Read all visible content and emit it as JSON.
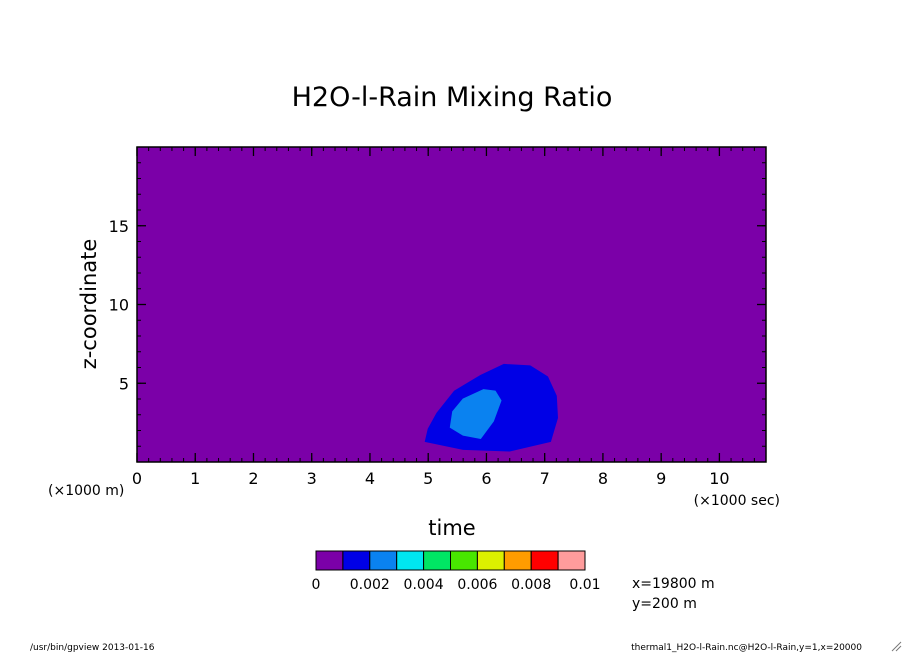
{
  "chart_data": {
    "type": "heatmap",
    "title": "H2O-l-Rain Mixing Ratio",
    "xlabel": "time",
    "ylabel": "z-coordinate",
    "x_units": "(×1000 sec)",
    "y_units": "(×1000 m)",
    "xlim": [
      0,
      10.8
    ],
    "ylim": [
      0,
      20
    ],
    "x_ticks": [
      0,
      1,
      2,
      3,
      4,
      5,
      6,
      7,
      8,
      9,
      10
    ],
    "y_ticks": [
      5,
      10,
      15
    ],
    "colorbar": {
      "levels": [
        0,
        0.001,
        0.002,
        0.003,
        0.004,
        0.005,
        0.006,
        0.007,
        0.008,
        0.009,
        0.01
      ],
      "tick_labels": [
        "0",
        "0.002",
        "0.004",
        "0.006",
        "0.008",
        "0.01"
      ],
      "colors": [
        "#7b00a8",
        "#0000e6",
        "#0a82f0",
        "#00e6f0",
        "#00e664",
        "#48e600",
        "#dcf000",
        "#ff9c00",
        "#ff0000",
        "#ff9c9c"
      ]
    },
    "background_level_color": "#7b00a8",
    "regions": [
      {
        "range": [
          0.001,
          0.002
        ],
        "color": "#0000e6",
        "outline": [
          [
            4.95,
            1.3
          ],
          [
            5.0,
            2.1
          ],
          [
            5.15,
            3.1
          ],
          [
            5.45,
            4.5
          ],
          [
            5.9,
            5.5
          ],
          [
            6.3,
            6.2
          ],
          [
            6.75,
            6.1
          ],
          [
            7.05,
            5.4
          ],
          [
            7.2,
            4.2
          ],
          [
            7.22,
            2.8
          ],
          [
            7.1,
            1.3
          ],
          [
            6.4,
            0.7
          ],
          [
            5.6,
            0.8
          ]
        ]
      },
      {
        "range": [
          0.002,
          0.003
        ],
        "color": "#0a82f0",
        "outline": [
          [
            5.38,
            2.2
          ],
          [
            5.42,
            3.2
          ],
          [
            5.6,
            4.0
          ],
          [
            5.95,
            4.6
          ],
          [
            6.15,
            4.5
          ],
          [
            6.25,
            3.9
          ],
          [
            6.12,
            2.6
          ],
          [
            5.9,
            1.5
          ],
          [
            5.6,
            1.7
          ]
        ]
      }
    ],
    "annotations": [
      "x=19800 m",
      "y=200 m"
    ]
  },
  "footer": {
    "left": "/usr/bin/gpview  2013-01-16",
    "right": "thermal1_H2O-l-Rain.nc@H2O-l-Rain,y=1,x=20000"
  },
  "resize_icon": "resize-grip-icon"
}
